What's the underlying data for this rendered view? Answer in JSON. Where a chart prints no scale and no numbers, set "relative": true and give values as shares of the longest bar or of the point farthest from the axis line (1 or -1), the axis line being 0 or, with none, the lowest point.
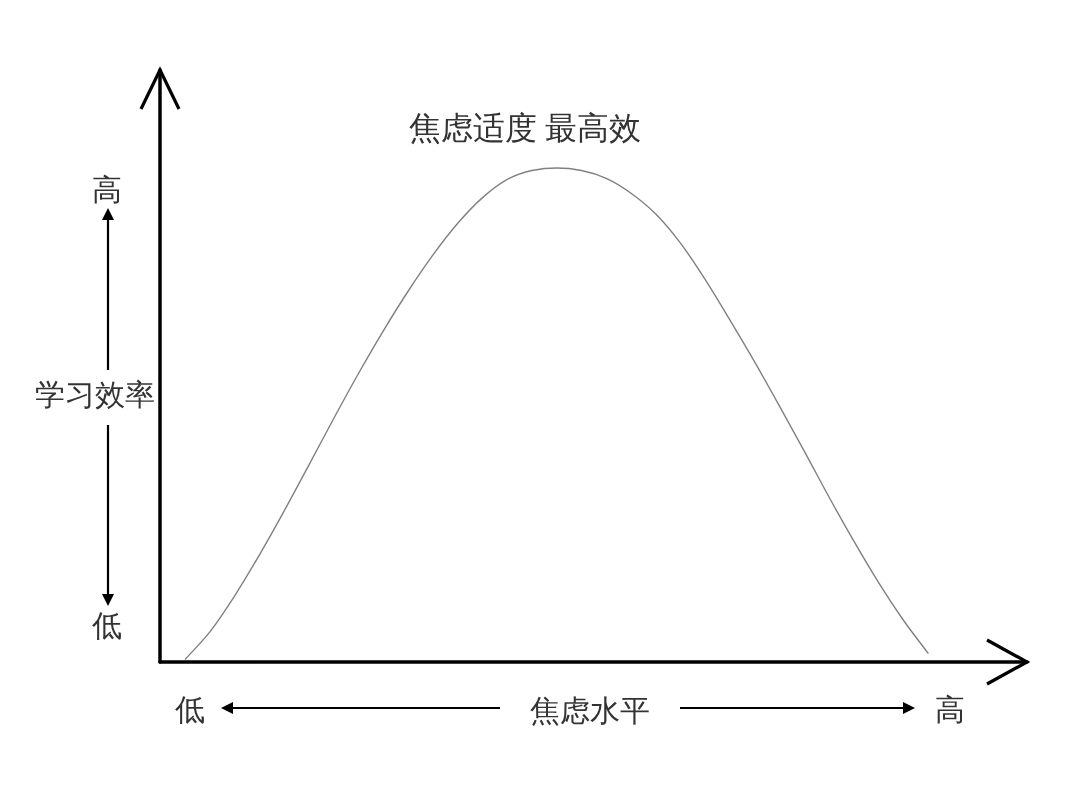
{
  "chart_data": {
    "type": "line",
    "title": "焦虑适度 最高效",
    "xlabel": "焦虑水平",
    "ylabel": "学习效率",
    "annotations": [
      "高",
      "低",
      "低",
      "高"
    ],
    "relative": true,
    "categories": [
      null,
      null,
      null,
      null,
      null,
      null,
      null,
      null,
      null,
      null,
      null,
      null,
      null,
      null,
      null,
      null,
      null,
      null,
      null,
      null,
      null,
      null,
      null,
      null,
      null,
      null,
      null,
      null,
      null,
      null,
      null
    ],
    "series": [
      {
        "color": "#808080",
        "values": [
          0.006,
          0.062,
          0.135,
          0.218,
          0.307,
          0.4,
          0.494,
          0.585,
          0.671,
          0.751,
          0.824,
          0.888,
          0.94,
          0.977,
          0.995,
          1.0,
          0.995,
          0.979,
          0.949,
          0.907,
          0.848,
          0.774,
          0.692,
          0.607,
          0.518,
          0.427,
          0.334,
          0.245,
          0.161,
          0.085,
          0.018
        ]
      }
    ]
  }
}
